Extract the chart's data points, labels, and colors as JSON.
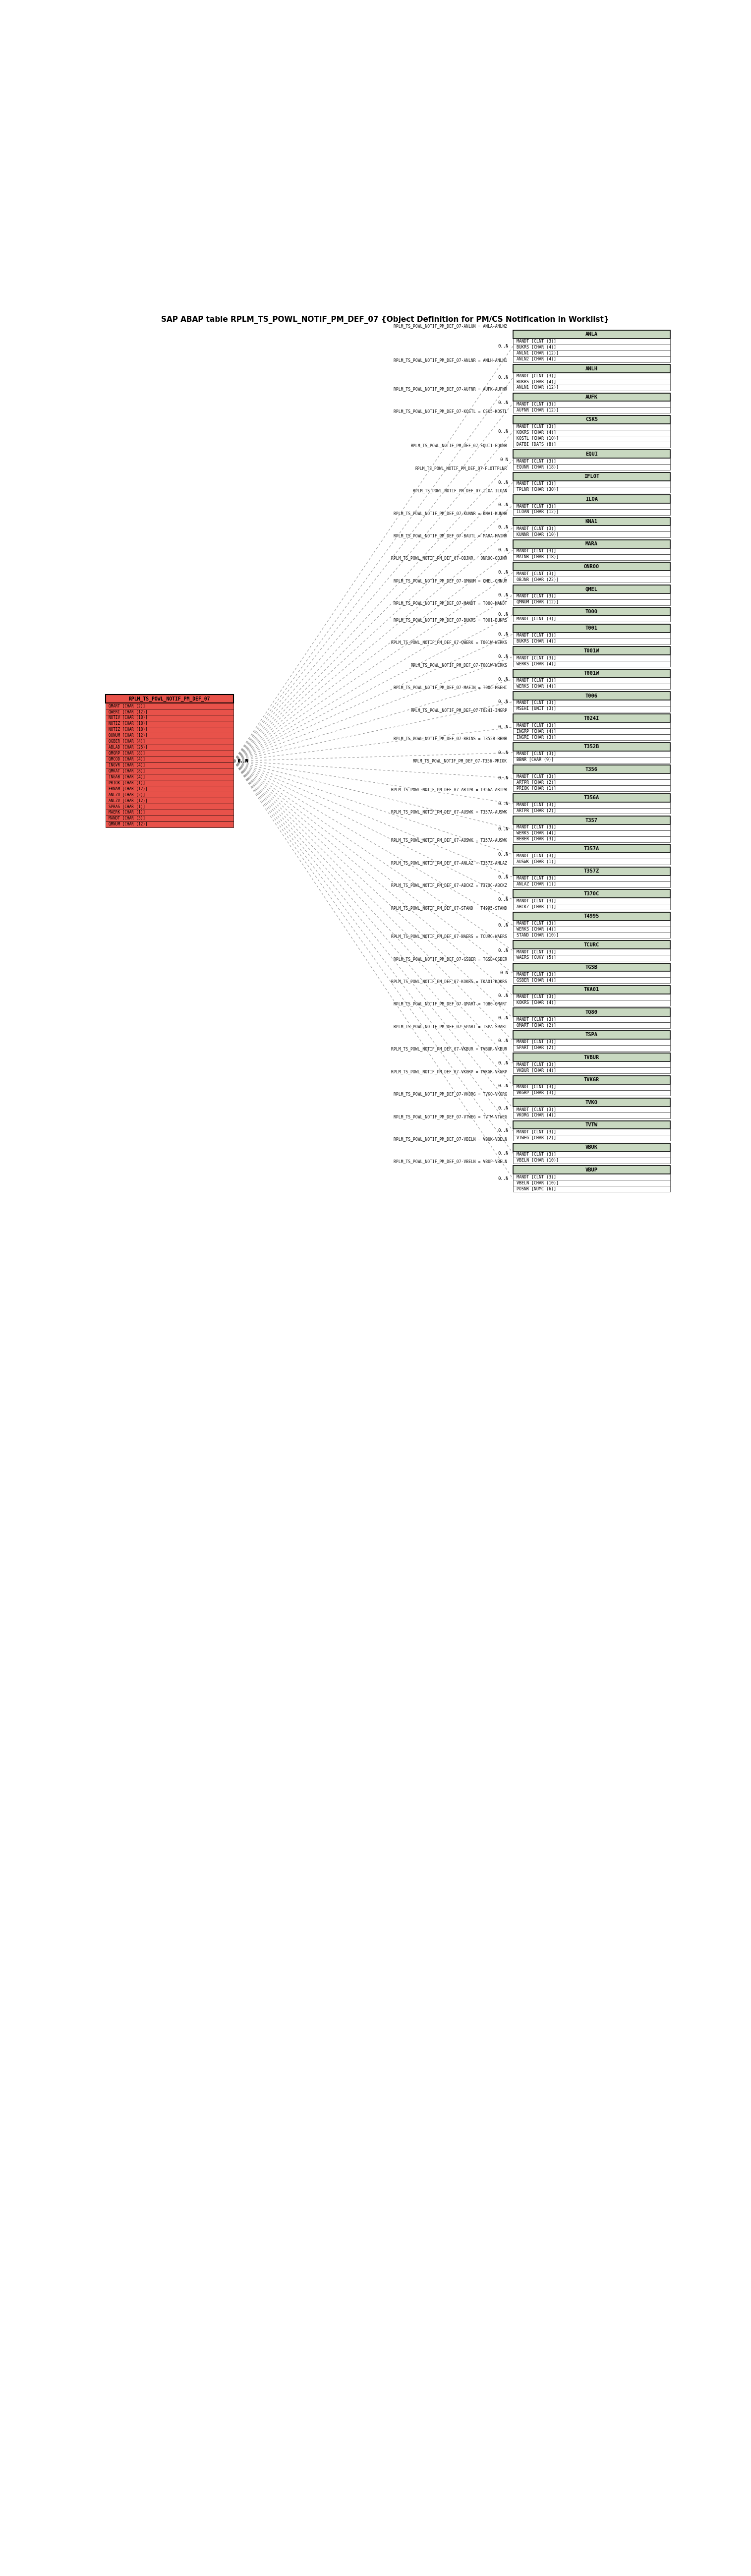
{
  "title": "SAP ABAP table RPLM_TS_POWL_NOTIF_PM_DEF_07 {Object Definition for PM/CS Notification in Worklist}",
  "title_fontsize": 14,
  "fig_width": 15.15,
  "fig_height": 51.96,
  "bg_color": "#ffffff",
  "central_table": {
    "name": "RPLM_TS_POWL_NOTIF_PM_DEF_07",
    "header_color": "#E8524A",
    "body_color": "#E8524A",
    "fields": [
      "QMART [CHAR (2)]",
      "QWERI [CHAR (12)]",
      "NOTIV [CHAR (18)]",
      "NOTIZ [CHAR (18)]",
      "NOTIZ [CHAR (18)]",
      "QUNUM [CHAR (12)]",
      "QGBER [CHAR (4)]",
      "ABLAD [CHAR (25)]",
      "QMGRP [CHAR (8)]",
      "QMCOD [CHAR (4)]",
      "INGVR [CHAR (4)]",
      "QMKAT [CHAR (8)]",
      "INGAB [CHAR (4)]",
      "PRIOK [CHAR (1)]",
      "ERNAM [CHAR (12)]",
      "ANLZU [CHAR (2)]",
      "ANLZV [CHAR (12)]",
      "SPRAS [CHAR (1)]",
      "MAERK [CHAR (1)]",
      "MANDT [CHAR (3)]",
      "QMNUM [CHAR (12)]"
    ]
  },
  "related_tables": [
    {
      "name": "ANLA",
      "header_color": "#C8D8C0",
      "fields": [
        "MANDT [CLNT (3)]",
        "BUKRS [CHAR (4)]",
        "ANLN1 [CHAR (12)]",
        "ANLN2 [CHAR (4)]"
      ],
      "relation_label": "RPLM_TS_POWL_NOTIF_PM_DEF_07-ANLUN = ANLA-ANLN2",
      "cardinality": "0..N"
    },
    {
      "name": "ANLH",
      "header_color": "#C8D8C0",
      "fields": [
        "MANDT [CLNT (3)]",
        "BUKRS [CHAR (4)]",
        "ANLN1 [CHAR (12)]"
      ],
      "relation_label": "RPLM_TS_POWL_NOTIF_PM_DEF_07-ANLNR = ANLH-ANLN1",
      "cardinality": "0..N"
    },
    {
      "name": "AUFK",
      "header_color": "#C8D8C0",
      "fields": [
        "MANDT [CLNT (3)]",
        "AUFNR [CHAR (12)]"
      ],
      "relation_label": "RPLM_TS_POWL_NOTIF_PM_DEF_07-AUFNR = AUFK-AUFNR",
      "cardinality": "0..N"
    },
    {
      "name": "CSK5",
      "header_color": "#C8D8C0",
      "fields": [
        "MANDT [CLNT (3)]",
        "KOKRS [CHAR (4)]",
        "KOSTL [CHAR (10)]",
        "DATBI [DATS (8)]"
      ],
      "relation_label": "RPLM_TS_POWL_NOTIF_PM_DEF_07-KOSTL = CSK5-KOSTL",
      "cardinality": "0..N"
    },
    {
      "name": "EQUI",
      "header_color": "#C8D8C0",
      "fields": [
        "MANDT [CLNT (3)]",
        "EQUNR [CHAR (18)]"
      ],
      "relation_label": "RPLM_TS_POWL_NOTIF_PM_DEF_07-EQUI1-EQUNR",
      "cardinality": "0 N"
    },
    {
      "name": "IFLOT",
      "header_color": "#C8D8C0",
      "fields": [
        "MANDT [CLNT (3)]",
        "TPLNR [CHAR (30)]"
      ],
      "relation_label": "RPLM_TS_POWL_NOTIF_PM_DEF_07-FLOTTPLNR",
      "cardinality": "0..N"
    },
    {
      "name": "ILOA",
      "header_color": "#C8D8C0",
      "fields": [
        "MANDT [CLNT (3)]",
        "ILOAN [CHAR (12)]"
      ],
      "relation_label": "RPLM_TS_POWL_NOTIF_PM_DEF_07-ILOA ILOAN",
      "cardinality": "0..N"
    },
    {
      "name": "KNA1",
      "header_color": "#C8D8C0",
      "fields": [
        "MANDT [CLNT (3)]",
        "KUNNR [CHAR (10)]"
      ],
      "relation_label": "RPLM_TS_POWL_NOTIF_PM_DEF_07-KUNNR = KNA1-KUNNR",
      "cardinality": "0..N"
    },
    {
      "name": "MARA",
      "header_color": "#C8D8C0",
      "fields": [
        "MANDT [CLNT (3)]",
        "MATNR [CHAR (18)]"
      ],
      "relation_label": "RPLM_TS_POWL_NOTIF_PM_DEF_07-BAUTL = MARA-MATNR",
      "cardinality": "0..N"
    },
    {
      "name": "ONR00",
      "header_color": "#C8D8C0",
      "fields": [
        "MANDT [CLNT (3)]",
        "OBJNR [CHAR (22)]"
      ],
      "relation_label": "RPLM_TS_POWL_NOTIF_PM_DEF_07-OBJNR = ONR00-OBJNR",
      "cardinality": "0..N"
    },
    {
      "name": "QMEL",
      "header_color": "#C8D8C0",
      "fields": [
        "MANDT [CLNT (3)]",
        "QMNUM [CHAR (12)]"
      ],
      "relation_label": "RPLM_TS_POWL_NOTIF_PM_DEF_07-QMNUM = QMEL-QMNUM",
      "cardinality": "0..N"
    },
    {
      "name": "T000",
      "header_color": "#C8D8C0",
      "fields": [
        "MANDT [CLNT (3)]"
      ],
      "relation_label": "RPLM_TS_POWL_NOTIF_PM_DEF_07-MANDT = T000-MANDT",
      "cardinality": "0..N"
    },
    {
      "name": "T001",
      "header_color": "#C8D8C0",
      "fields": [
        "MANDT [CLNT (3)]",
        "BUKRS [CHAR (4)]"
      ],
      "relation_label": "RPLM_TS_POWL_NOTIF_PM_DEF_07-BUKRS = T001-BUKRS",
      "cardinality": "0..N"
    },
    {
      "name": "T001W",
      "header_color": "#C8D8C0",
      "fields": [
        "MANDT [CLNT (3)]",
        "WERKS [CHAR (4)]"
      ],
      "relation_label": "RPLM_TS_POWL_NOTIF_PM_DEF_07-QWERK = T001W-WERKS",
      "cardinality": "0..N"
    },
    {
      "name": "T001W",
      "header_color": "#C8D8C0",
      "fields": [
        "MANDT [CLNT (3)]",
        "WERKS [CHAR (4)]"
      ],
      "relation_label": "RPLM_TS_POWL_NOTIF_PM_DEF_07-T001W-WERKS",
      "cardinality": "0..N"
    },
    {
      "name": "T006",
      "header_color": "#C8D8C0",
      "fields": [
        "MANDT [CLNT (3)]",
        "MSEHI [UNIT (3)]"
      ],
      "relation_label": "RPLM_TS_POWL_NOTIF_PM_DEF_07-MAEIN = T006-MSEHI",
      "cardinality": "0..N"
    },
    {
      "name": "T024I",
      "header_color": "#C8D8C0",
      "fields": [
        "MANDT [CLNT (3)]",
        "INGRP [CHAR (4)]",
        "INGRE [CHAR (3)]"
      ],
      "relation_label": "RPLM_TS_POWL_NOTIF_PM_DEF_07-T024I-INGRP",
      "cardinality": "0..N"
    },
    {
      "name": "T352B",
      "header_color": "#C8D8C0",
      "fields": [
        "MANDT [CLNT (3)]",
        "BBNR [CHAR (9)]"
      ],
      "relation_label": "RPLM_TS_POWL_NOTIF_PM_DEF_07-RBINS = T352B-BBNR",
      "cardinality": "0..N"
    },
    {
      "name": "T356",
      "header_color": "#C8D8C0",
      "fields": [
        "MANDT [CLNT (3)]",
        "ARTPR [CHAR (2)]",
        "PRIOK [CHAR (1)]"
      ],
      "relation_label": "RPLM_TS_POWL_NOTIF_PM_DEF_07-T356-PRIOK",
      "cardinality": "0..N"
    },
    {
      "name": "T356A",
      "header_color": "#C8D8C0",
      "fields": [
        "MANDT [CLNT (3)]",
        "ARTPR [CHAR (2)]"
      ],
      "relation_label": "RPLM_TS_POWL_NOTIF_PM_DEF_07-ARTPR = T356A-ARTPR",
      "cardinality": "0..N"
    },
    {
      "name": "T357",
      "header_color": "#C8D8C0",
      "fields": [
        "MANDT [CLNT (3)]",
        "WERKS [CHAR (4)]",
        "BEBER [CHAR (3)]"
      ],
      "relation_label": "RPLM_TS_POWL_NOTIF_PM_DEF_07-AUSWK = T357A-AUSWK",
      "cardinality": "0..N"
    },
    {
      "name": "T357A",
      "header_color": "#C8D8C0",
      "fields": [
        "MANDT [CLNT (3)]",
        "AUSWK [CHAR (1)]"
      ],
      "relation_label": "RPLM_TS_POWL_NOTIF_PM_DEF_07-AUSWK = T357A-AUSWK",
      "cardinality": "0..N"
    },
    {
      "name": "T357Z",
      "header_color": "#C8D8C0",
      "fields": [
        "MANDT [CLNT (3)]",
        "ANLAZ [CHAR (1)]"
      ],
      "relation_label": "RPLM_TS_POWL_NOTIF_PM_DEF_07-ANLAZ = T357Z-ANLAZ",
      "cardinality": "0..N"
    },
    {
      "name": "T370C",
      "header_color": "#C8D8C0",
      "fields": [
        "MANDT [CLNT (3)]",
        "ABCKZ [CHAR (1)]"
      ],
      "relation_label": "RPLM_TS_POWL_NOTIF_PM_DEF_07-ABCKZ = T370C-ABCKZ",
      "cardinality": "0..N"
    },
    {
      "name": "T4995",
      "header_color": "#C8D8C0",
      "fields": [
        "MANDT [CLNT (3)]",
        "WERKS [CHAR (4)]",
        "STAND [CHAR (10)]"
      ],
      "relation_label": "RPLM_TS_POWL_NOTIF_PM_DEF_07-STAND = T4995-STAND",
      "cardinality": "0..N"
    },
    {
      "name": "TCURC",
      "header_color": "#C8D8C0",
      "fields": [
        "MANDT [CLNT (3)]",
        "WAERS [CUKY (5)]"
      ],
      "relation_label": "RPLM_TS_POWL_NOTIF_PM_DEF_07-WAERS = TCURC-WAERS",
      "cardinality": "0..N"
    },
    {
      "name": "TGSB",
      "header_color": "#C8D8C0",
      "fields": [
        "MANDT [CLNT (3)]",
        "GSBER [CHAR (4)]"
      ],
      "relation_label": "RPLM_TS_POWL_NOTIF_PM_DEF_07-GSBER = TGSB-GSBER",
      "cardinality": "0 N"
    },
    {
      "name": "TKA01",
      "header_color": "#C8D8C0",
      "fields": [
        "MANDT [CLNT (3)]",
        "KOKRS [CHAR (4)]"
      ],
      "relation_label": "RPLM_TS_POWL_NOTIF_PM_DEF_07-KOKRS = TKA01-KOKRS",
      "cardinality": "0..N"
    },
    {
      "name": "TQ80",
      "header_color": "#C8D8C0",
      "fields": [
        "MANDT [CLNT (3)]",
        "QMART [CHAR (2)]"
      ],
      "relation_label": "RPLM_TS_POWL_NOTIF_PM_DEF_07-QMART = TQ80-QMART",
      "cardinality": "0..N"
    },
    {
      "name": "TSPA",
      "header_color": "#C8D8C0",
      "fields": [
        "MANDT [CLNT (3)]",
        "SPART [CHAR (2)]"
      ],
      "relation_label": "RPLM_TS_POWL_NOTIF_PM_DEF_07-SPART = TSPA-SPART",
      "cardinality": "0..N"
    },
    {
      "name": "TVBUR",
      "header_color": "#C8D8C0",
      "fields": [
        "MANDT [CLNT (3)]",
        "VKBUR [CHAR (4)]"
      ],
      "relation_label": "RPLM_TS_POWL_NOTIF_PM_DEF_07-VKBUR = TVBUR-VKBUR",
      "cardinality": "0..N"
    },
    {
      "name": "TVKGR",
      "header_color": "#C8D8C0",
      "fields": [
        "MANDT [CLNT (3)]",
        "VKGRP [CHAR (3)]"
      ],
      "relation_label": "RPLM_TS_POWL_NOTIF_PM_DEF_07-VKGRP = TVKGR-VKGRP",
      "cardinality": "0..N"
    },
    {
      "name": "TVKO",
      "header_color": "#C8D8C0",
      "fields": [
        "MANDT [CLNT (3)]",
        "VKORG [CHAR (4)]"
      ],
      "relation_label": "RPLM_TS_POWL_NOTIF_PM_DEF_07-VKORG = TVKO-VKORG",
      "cardinality": "0..N"
    },
    {
      "name": "TVTW",
      "header_color": "#C8D8C0",
      "fields": [
        "MANDT [CLNT (3)]",
        "VTWEG [CHAR (2)]"
      ],
      "relation_label": "RPLM_TS_POWL_NOTIF_PM_DEF_07-VTWEG = TVTW-VTWEG",
      "cardinality": "0..N"
    },
    {
      "name": "VBUK",
      "header_color": "#C8D8C0",
      "fields": [
        "MANDT [CLNT (3)]",
        "VBELN [CHAR (10)]"
      ],
      "relation_label": "RPLM_TS_POWL_NOTIF_PM_DEF_07-VBELN = VBUK-VBELN",
      "cardinality": "0..N"
    },
    {
      "name": "VBUP",
      "header_color": "#C8D8C0",
      "fields": [
        "MANDT [CLNT (3)]",
        "VBELN [CHAR (10)]",
        "POSNR [NUMC (6)]"
      ],
      "relation_label": "RPLM_TS_POWL_NOTIF_PM_DEF_07-VBELN = VBUP-VBELN",
      "cardinality": "0..N"
    }
  ]
}
